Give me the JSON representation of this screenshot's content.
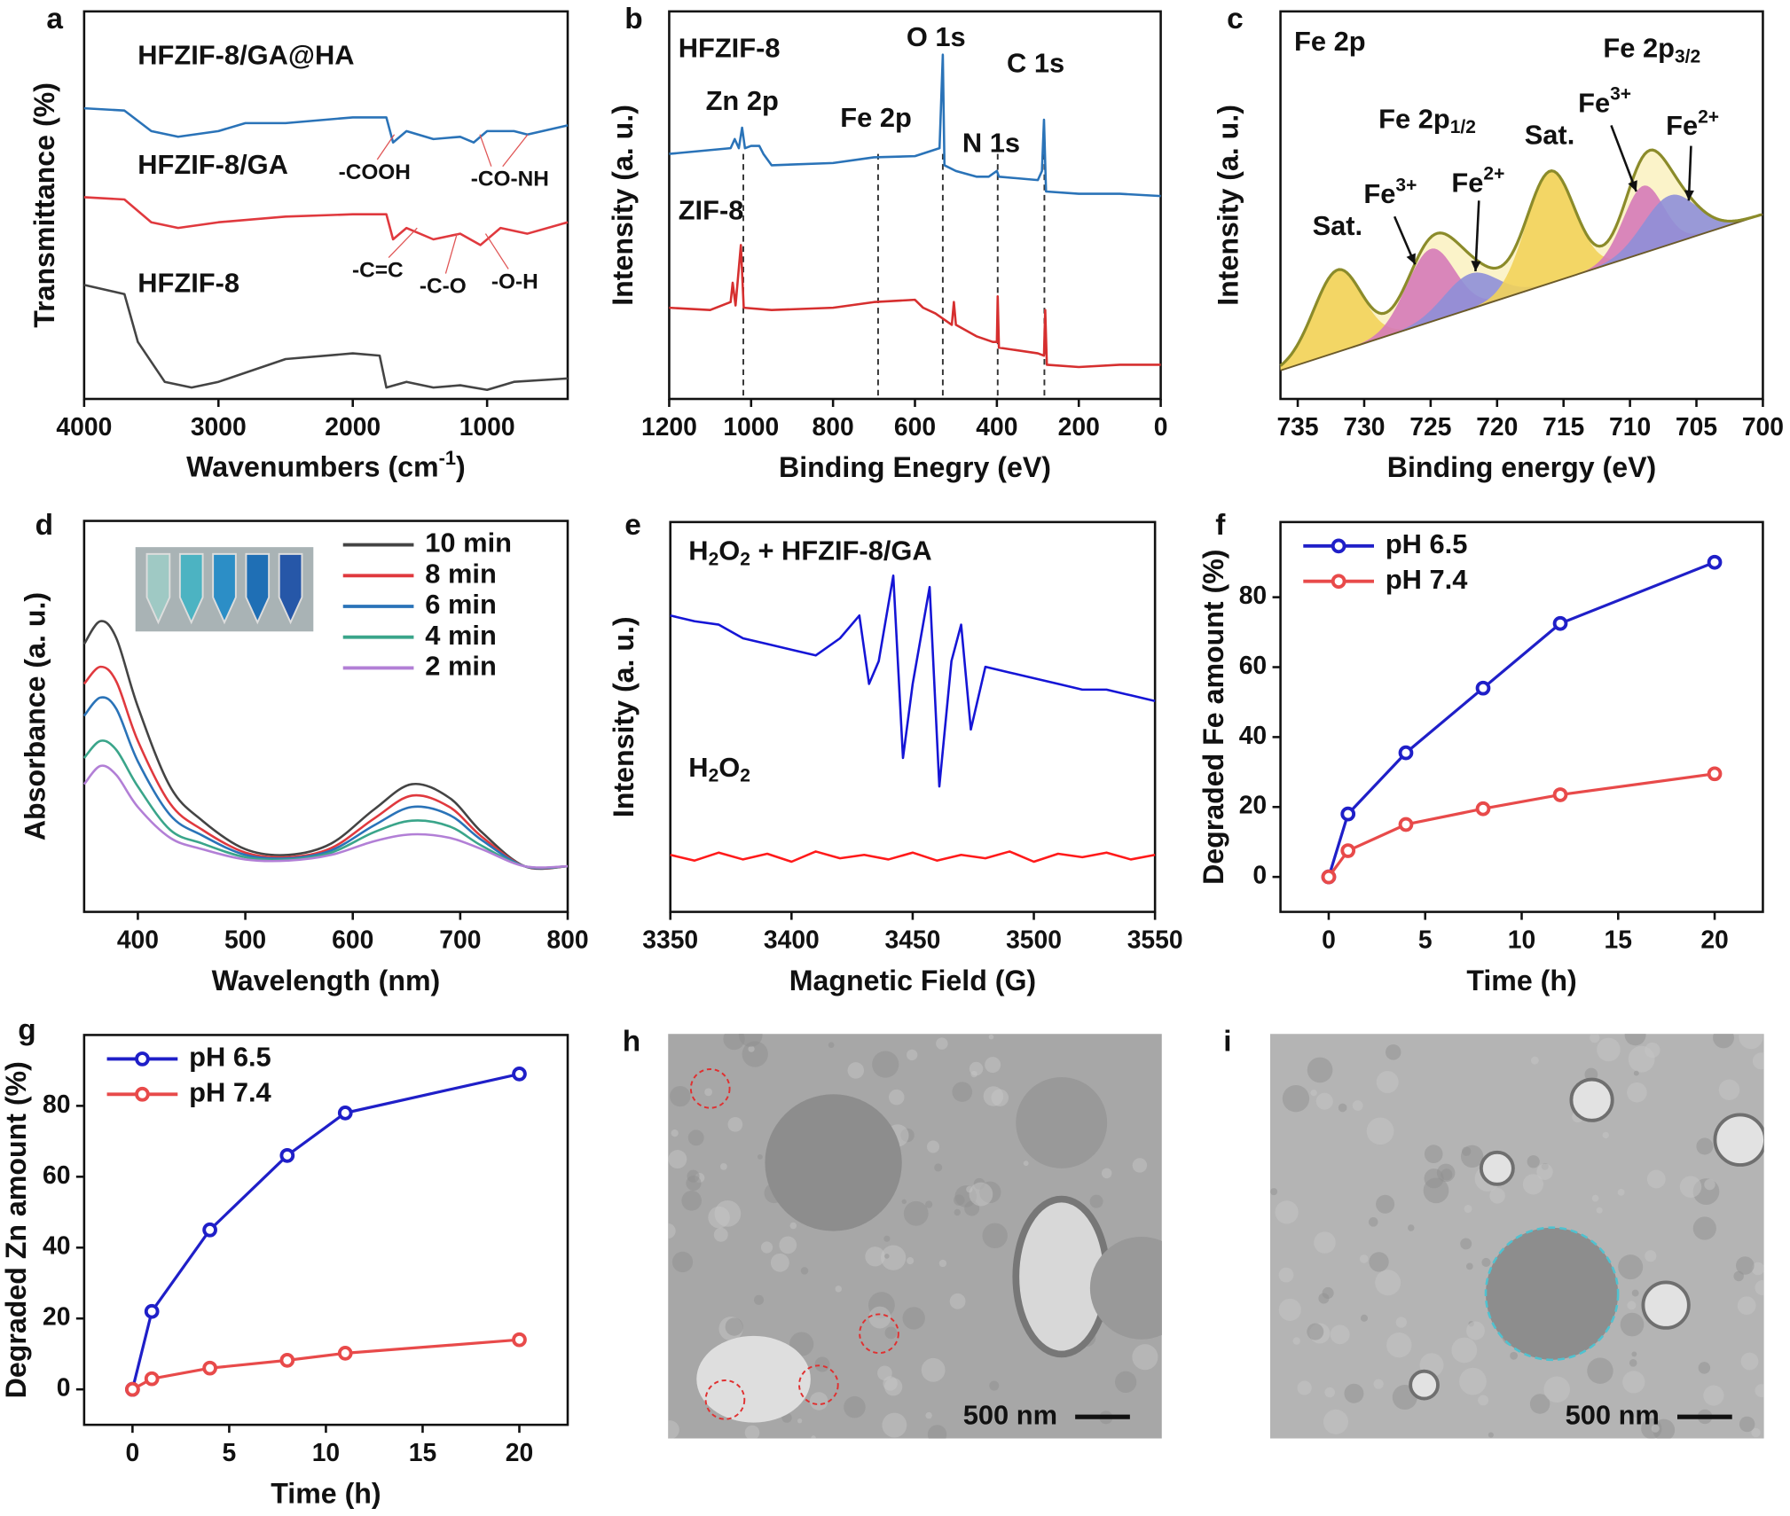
{
  "chart_data": [
    {
      "type": "line",
      "label": "a",
      "xlabel": [
        {
          "t": "Wavenumbers (cm"
        },
        {
          "t": "-1",
          "s": "sup"
        },
        {
          "t": ")"
        }
      ],
      "ylabel": "Transmittance (%)",
      "xlim": [
        4000,
        400
      ],
      "xticks": [
        4000,
        3000,
        2000,
        1000
      ],
      "ylim": [
        0,
        340
      ],
      "series": [
        {
          "name": "HFZIF-8/GA@HA",
          "color": "#2a73b8",
          "x": [
            4000,
            3700,
            3500,
            3300,
            3000,
            2800,
            2500,
            2000,
            1750,
            1700,
            1600,
            1400,
            1200,
            1100,
            1000,
            800,
            700,
            400
          ],
          "values": [
            255,
            253,
            235,
            230,
            235,
            242,
            242,
            247,
            247,
            225,
            235,
            228,
            230,
            225,
            235,
            235,
            232,
            240
          ]
        },
        {
          "name": "HFZIF-8/GA",
          "color": "#e0393e",
          "x": [
            4000,
            3700,
            3500,
            3300,
            3000,
            2500,
            2000,
            1750,
            1700,
            1600,
            1400,
            1200,
            1050,
            900,
            700,
            400
          ],
          "values": [
            177,
            175,
            155,
            150,
            155,
            160,
            162,
            162,
            140,
            150,
            140,
            145,
            135,
            150,
            145,
            155
          ]
        },
        {
          "name": "HFZIF-8",
          "color": "#444444",
          "x": [
            4000,
            3700,
            3600,
            3400,
            3200,
            3000,
            2500,
            2000,
            1800,
            1750,
            1600,
            1400,
            1200,
            1000,
            800,
            400
          ],
          "values": [
            100,
            92,
            50,
            15,
            10,
            15,
            35,
            40,
            38,
            10,
            15,
            10,
            12,
            8,
            15,
            18
          ]
        }
      ],
      "annotations": [
        "-COOH",
        "-CO-NH",
        "-C=C",
        "-C-O",
        "-O-H"
      ]
    },
    {
      "type": "line",
      "label": "b",
      "xlabel": "Binding Enegry (eV)",
      "ylabel": "Intensity (a. u.)",
      "xlim": [
        1200,
        0
      ],
      "xticks": [
        1200,
        1000,
        800,
        600,
        400,
        200,
        0
      ],
      "ylim": [
        0,
        340
      ],
      "series": [
        {
          "name": "HFZIF-8",
          "color": "#2a73b8",
          "x": [
            1200,
            1050,
            1040,
            1030,
            1022,
            1015,
            1000,
            980,
            970,
            960,
            950,
            800,
            700,
            600,
            540,
            532,
            528,
            500,
            450,
            420,
            400,
            395,
            300,
            290,
            285,
            280,
            200,
            100,
            0
          ],
          "values": [
            215,
            220,
            228,
            220,
            238,
            220,
            222,
            222,
            215,
            210,
            205,
            207,
            212,
            213,
            220,
            302,
            205,
            200,
            195,
            195,
            200,
            195,
            192,
            200,
            245,
            182,
            180,
            180,
            178
          ]
        },
        {
          "name": "ZIF-8",
          "color": "#d62f2f",
          "x": [
            1200,
            1100,
            1050,
            1045,
            1038,
            1025,
            1018,
            950,
            800,
            700,
            600,
            580,
            550,
            510,
            505,
            500,
            450,
            410,
            400,
            398,
            395,
            300,
            285,
            282,
            278,
            200,
            100,
            0
          ],
          "values": [
            80,
            78,
            85,
            102,
            82,
            135,
            80,
            78,
            80,
            85,
            87,
            80,
            75,
            65,
            85,
            65,
            55,
            50,
            50,
            90,
            45,
            40,
            38,
            78,
            30,
            28,
            30,
            30
          ]
        }
      ],
      "peaks": [
        1019,
        690,
        532,
        398,
        284
      ],
      "annotations": [
        "Zn 2p",
        "Fe 2p",
        "O 1s",
        "N 1s",
        "C 1s"
      ]
    },
    {
      "type": "peakfit",
      "label": "c",
      "xlabel": "Binding energy (eV)",
      "ylabel": "Intensity (a. u.)",
      "xlim": [
        736.3,
        700
      ],
      "xticks": [
        735,
        730,
        725,
        720,
        715,
        710,
        705,
        700
      ],
      "ylim": [
        0,
        340
      ],
      "baseline": [
        25,
        162
      ],
      "envelope_color": "#8b8b2a",
      "components": [
        {
          "label": [
            {
              "t": "Sat."
            }
          ],
          "color": "#f2d35a",
          "center": 732,
          "height": 72,
          "sigma": 1.8
        },
        {
          "label": [
            {
              "t": "Fe"
            },
            {
              "t": "3+",
              "s": "sup"
            }
          ],
          "color": "#d57ab8",
          "center": 725,
          "height": 64,
          "sigma": 1.8
        },
        {
          "label": [
            {
              "t": "Fe"
            },
            {
              "t": "2+",
              "s": "sup"
            }
          ],
          "color": "#8e8fd8",
          "center": 722,
          "height": 31,
          "sigma": 2
        },
        {
          "label": [
            {
              "t": "Sat."
            }
          ],
          "color": "#f2d35a",
          "center": 716,
          "height": 98,
          "sigma": 1.8
        },
        {
          "label": [
            {
              "t": "Fe"
            },
            {
              "t": "3+",
              "s": "sup"
            }
          ],
          "color": "#d57ab8",
          "center": 709,
          "height": 59,
          "sigma": 1.5
        },
        {
          "label": [
            {
              "t": "Fe"
            },
            {
              "t": "2+",
              "s": "sup"
            }
          ],
          "color": "#8e8fd8",
          "center": 707,
          "height": 43,
          "sigma": 2
        }
      ],
      "annotations": [
        [
          {
            "t": "Fe 2p"
          }
        ],
        [
          {
            "t": "Fe 2p"
          },
          {
            "t": "1/2",
            "s": "sub"
          }
        ],
        [
          {
            "t": "Fe 2p"
          },
          {
            "t": "3/2",
            "s": "sub"
          }
        ]
      ]
    },
    {
      "type": "line",
      "label": "d",
      "xlabel": "Wavelength (nm)",
      "ylabel": "Absorbance (a. u.)",
      "smooth": true,
      "legend": "upper right",
      "xlim": [
        350,
        800
      ],
      "xticks": [
        400,
        500,
        600,
        700,
        800
      ],
      "ylim": [
        0,
        343
      ],
      "x": [
        350,
        365,
        380,
        400,
        430,
        460,
        500,
        540,
        580,
        620,
        655,
        690,
        720,
        760,
        800
      ],
      "series": [
        {
          "name": "10 min",
          "color": "#444444",
          "values": [
            235,
            255,
            240,
            180,
            110,
            80,
            55,
            50,
            60,
            90,
            112,
            100,
            70,
            40,
            40
          ]
        },
        {
          "name": "8 min",
          "color": "#e0393e",
          "values": [
            200,
            215,
            202,
            150,
            95,
            72,
            52,
            48,
            56,
            82,
            102,
            92,
            66,
            40,
            40
          ]
        },
        {
          "name": "6 min",
          "color": "#2a73b8",
          "values": [
            172,
            188,
            178,
            132,
            85,
            67,
            50,
            47,
            54,
            76,
            92,
            85,
            63,
            40,
            40
          ]
        },
        {
          "name": "4 min",
          "color": "#3aa58a",
          "values": [
            135,
            150,
            142,
            110,
            72,
            60,
            48,
            46,
            52,
            70,
            80,
            75,
            58,
            40,
            40
          ]
        },
        {
          "name": "2 min",
          "color": "#b27fd6",
          "values": [
            112,
            128,
            120,
            92,
            65,
            55,
            46,
            45,
            50,
            62,
            68,
            65,
            55,
            40,
            40
          ]
        }
      ]
    },
    {
      "type": "line",
      "label": "e",
      "xlabel": "Magnetic Field (G)",
      "ylabel": "Intensity (a. u.)",
      "xlim": [
        3350,
        3550
      ],
      "xticks": [
        3350,
        3400,
        3450,
        3500,
        3550
      ],
      "ylim": [
        0,
        342
      ],
      "series": [
        {
          "name": [
            {
              "t": "H"
            },
            {
              "t": "2",
              "s": "sub"
            },
            {
              "t": "O"
            },
            {
              "t": "2",
              "s": "sub"
            },
            {
              "t": " + HFZIF-8/GA"
            }
          ],
          "color": "#1515d6",
          "x": [
            3350,
            3360,
            3370,
            3380,
            3390,
            3400,
            3410,
            3420,
            3428,
            3432,
            3436,
            3442,
            3446,
            3450,
            3457,
            3461,
            3466,
            3470,
            3474,
            3480,
            3490,
            3500,
            3510,
            3520,
            3530,
            3540,
            3550
          ],
          "values": [
            260,
            255,
            252,
            240,
            235,
            230,
            225,
            240,
            260,
            200,
            220,
            295,
            135,
            200,
            285,
            110,
            220,
            252,
            160,
            215,
            210,
            205,
            200,
            195,
            195,
            190,
            185
          ]
        },
        {
          "name": [
            {
              "t": "H"
            },
            {
              "t": "2",
              "s": "sub"
            },
            {
              "t": "O"
            },
            {
              "t": "2",
              "s": "sub"
            }
          ],
          "color": "#ff1a1a",
          "x": [
            3350,
            3360,
            3370,
            3380,
            3390,
            3400,
            3410,
            3420,
            3430,
            3440,
            3450,
            3460,
            3470,
            3480,
            3490,
            3500,
            3510,
            3520,
            3530,
            3540,
            3550
          ],
          "values": [
            50,
            45,
            52,
            46,
            51,
            44,
            53,
            47,
            50,
            46,
            52,
            45,
            50,
            47,
            53,
            44,
            51,
            48,
            52,
            46,
            50
          ]
        }
      ]
    },
    {
      "type": "line",
      "label": "f",
      "xlabel": "Time (h)",
      "ylabel": "Degraded Fe amount (%)",
      "markers": true,
      "legend": "upper left",
      "xlim": [
        -2.5,
        22.5
      ],
      "xticks": [
        0,
        5,
        10,
        15,
        20
      ],
      "ylim": [
        -10,
        101.5
      ],
      "yticks": [
        0,
        20,
        40,
        60,
        80
      ],
      "series": [
        {
          "name": "pH 6.5",
          "color": "#1f1fc8",
          "x": [
            0,
            1,
            4,
            8,
            12,
            20
          ],
          "values": [
            0,
            18,
            35.5,
            54,
            72.5,
            90
          ]
        },
        {
          "name": "pH 7.4",
          "color": "#e84a4a",
          "x": [
            0,
            1,
            4,
            8,
            12,
            20
          ],
          "values": [
            0,
            7.5,
            15,
            19.5,
            23.5,
            29.5
          ]
        }
      ]
    },
    {
      "type": "line",
      "label": "g",
      "xlabel": "Time (h)",
      "ylabel": "Degraded Zn amount (%)",
      "markers": true,
      "legend": "upper left",
      "xlim": [
        -2.5,
        22.5
      ],
      "xticks": [
        0,
        5,
        10,
        15,
        20
      ],
      "ylim": [
        -10,
        100
      ],
      "yticks": [
        0,
        20,
        40,
        60,
        80
      ],
      "series": [
        {
          "name": "pH 6.5",
          "color": "#1f1fc8",
          "x": [
            0,
            1,
            4,
            8,
            11,
            20
          ],
          "values": [
            0,
            22,
            45,
            66,
            78,
            89
          ]
        },
        {
          "name": "pH 7.4",
          "color": "#e84a4a",
          "x": [
            0,
            1,
            4,
            8,
            11,
            20
          ],
          "values": [
            0,
            3,
            6,
            8.2,
            10.2,
            14
          ]
        }
      ]
    },
    {
      "type": "image",
      "label": "h",
      "scale_bar": "500 nm"
    },
    {
      "type": "image",
      "label": "i",
      "scale_bar": "500 nm"
    }
  ]
}
